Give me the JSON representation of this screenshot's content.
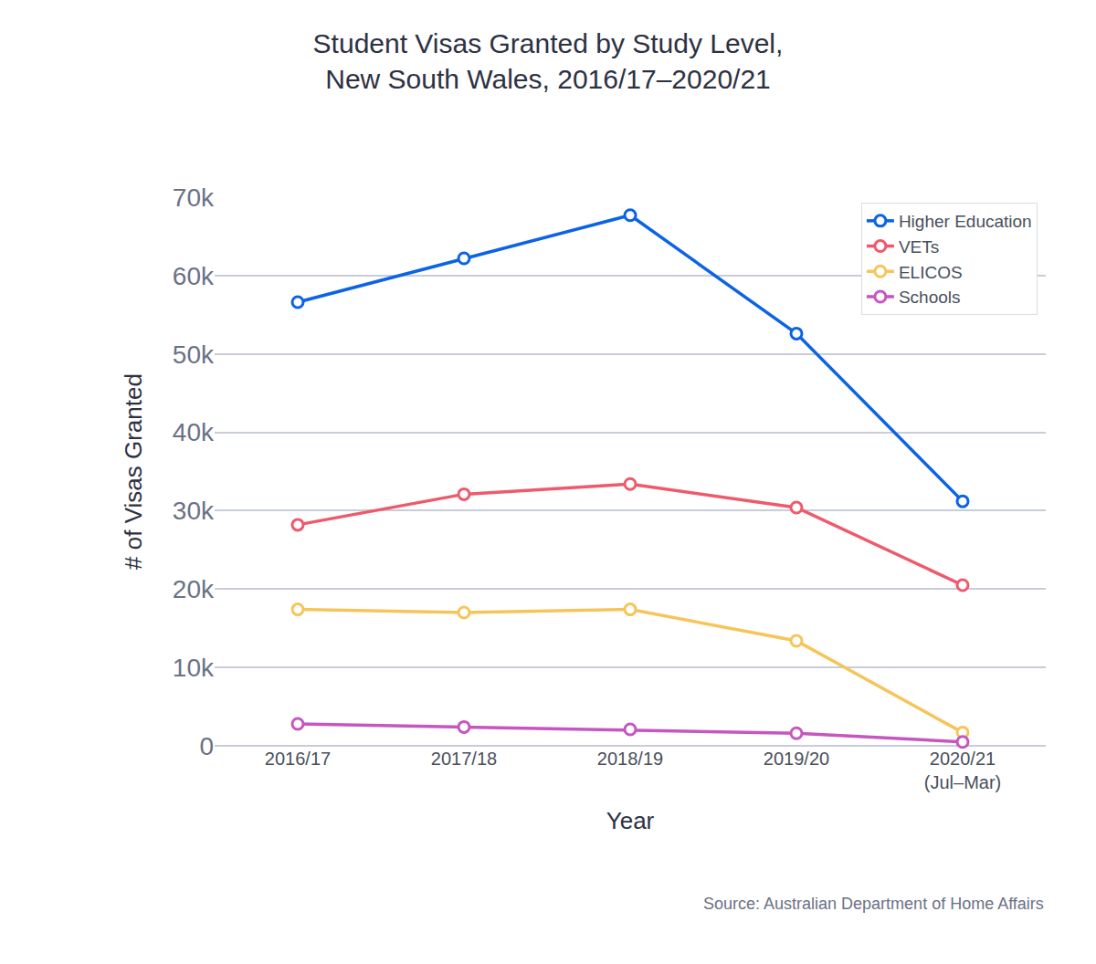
{
  "chart_data": {
    "type": "line",
    "title": "Student Visas Granted by Study Level,\nNew South Wales, 2016/17–2020/21",
    "x_label": "Year",
    "y_label": "# of Visas Granted",
    "source": "Source: Australian Department of Home Affairs",
    "categories": [
      "2016/17",
      "2017/18",
      "2018/19",
      "2019/20",
      "2020/21\n(Jul–Mar)"
    ],
    "series": [
      {
        "name": "Higher Education",
        "color": "#0b63e5",
        "values": [
          56600,
          62200,
          67700,
          52600,
          31200
        ]
      },
      {
        "name": "VETs",
        "color": "#ee5a6c",
        "values": [
          28200,
          32100,
          33400,
          30400,
          20500
        ]
      },
      {
        "name": "ELICOS",
        "color": "#f6c55a",
        "values": [
          17400,
          17000,
          17400,
          13400,
          1700
        ]
      },
      {
        "name": "Schools",
        "color": "#c656c0",
        "values": [
          2800,
          2400,
          2100,
          1600,
          500
        ]
      }
    ],
    "ylim": [
      0,
      70000
    ],
    "yticks": [
      0,
      {
        "value": 10000,
        "label": "10k"
      },
      {
        "value": 20000,
        "label": "20k"
      },
      {
        "value": 30000,
        "label": "30k"
      },
      {
        "value": 40000,
        "label": "40k"
      },
      {
        "value": 50000,
        "label": "50k"
      },
      {
        "value": 60000,
        "label": "60k"
      },
      {
        "value": 70000,
        "label": "70k"
      }
    ],
    "grid": true,
    "legend": "top right",
    "marker": "circle"
  }
}
